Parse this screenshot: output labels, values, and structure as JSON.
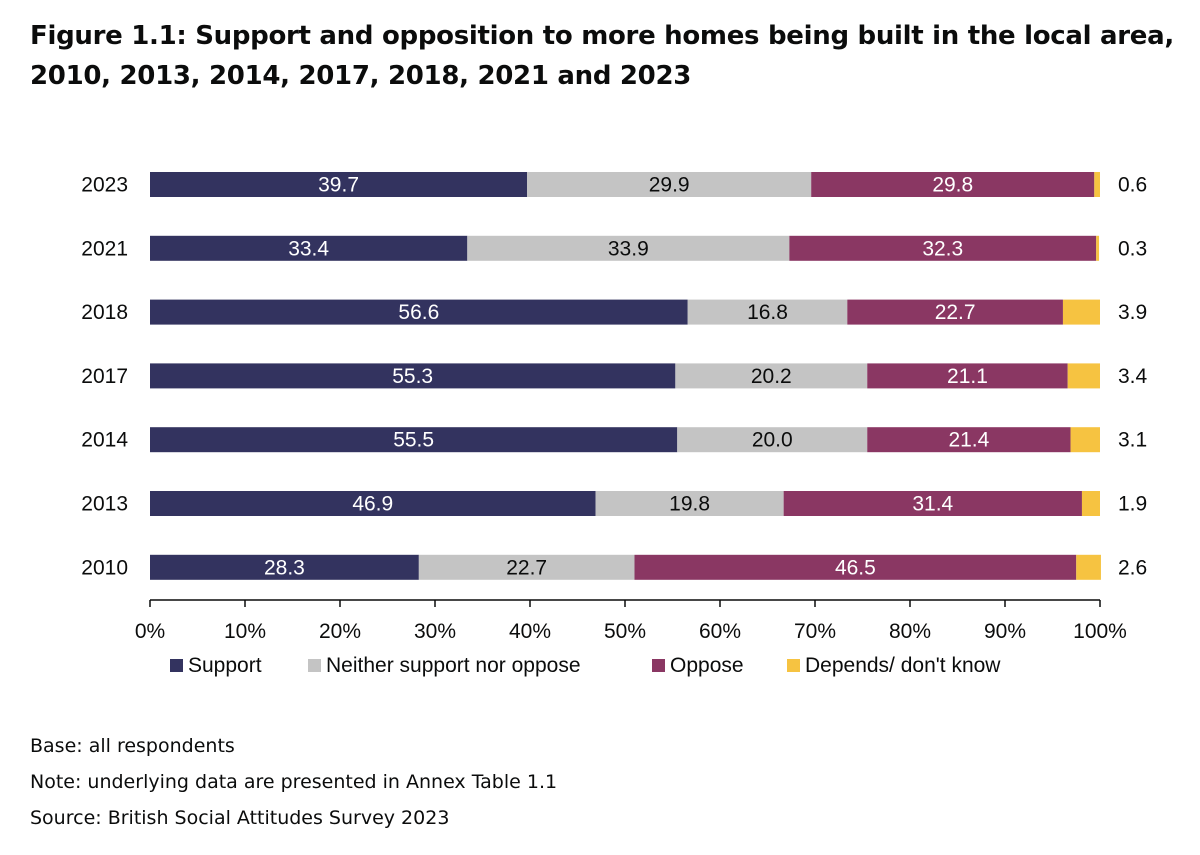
{
  "title": "Figure 1.1: Support and opposition to more homes being built in the local area, 2010, 2013, 2014, 2017, 2018, 2021 and 2023",
  "notes": {
    "base": "Base: all respondents",
    "note": "Note: underlying data are presented in Annex Table 1.1",
    "source": "Source: British Social Attitudes Survey 2023"
  },
  "chart_data": {
    "type": "bar",
    "orientation": "horizontal",
    "stacked": true,
    "categories": [
      "2023",
      "2021",
      "2018",
      "2017",
      "2014",
      "2013",
      "2010"
    ],
    "series": [
      {
        "name": "Support",
        "color": "#33335f",
        "label_color": "#ffffff",
        "values": [
          39.7,
          33.4,
          56.6,
          55.3,
          55.5,
          46.9,
          28.3
        ],
        "labels": [
          "39.7",
          "33.4",
          "56.6",
          "55.3",
          "55.5",
          "46.9",
          "28.3"
        ]
      },
      {
        "name": "Neither support nor oppose",
        "color": "#c4c4c4",
        "label_color": "#0b0c0c",
        "values": [
          29.9,
          33.9,
          16.8,
          20.2,
          20.0,
          19.8,
          22.7
        ],
        "labels": [
          "29.9",
          "33.9",
          "16.8",
          "20.2",
          "20.0",
          "19.8",
          "22.7"
        ]
      },
      {
        "name": "Oppose",
        "color": "#8a3763",
        "label_color": "#ffffff",
        "values": [
          29.8,
          32.3,
          22.7,
          21.1,
          21.4,
          31.4,
          46.5
        ],
        "labels": [
          "29.8",
          "32.3",
          "22.7",
          "21.1",
          "21.4",
          "31.4",
          "46.5"
        ]
      },
      {
        "name": "Depends/ don't know",
        "color": "#f6c341",
        "label_color": "#0b0c0c",
        "label_outside": true,
        "values": [
          0.6,
          0.3,
          3.9,
          3.4,
          3.1,
          1.9,
          2.6
        ],
        "labels": [
          "0.6",
          "0.3",
          "3.9",
          "3.4",
          "3.1",
          "1.9",
          "2.6"
        ]
      }
    ],
    "xlim": [
      0,
      100
    ],
    "xticks": [
      "0%",
      "10%",
      "20%",
      "30%",
      "40%",
      "50%",
      "60%",
      "70%",
      "80%",
      "90%",
      "100%"
    ],
    "xlabel": "",
    "ylabel": "",
    "grid": false,
    "legend_position": "bottom"
  }
}
